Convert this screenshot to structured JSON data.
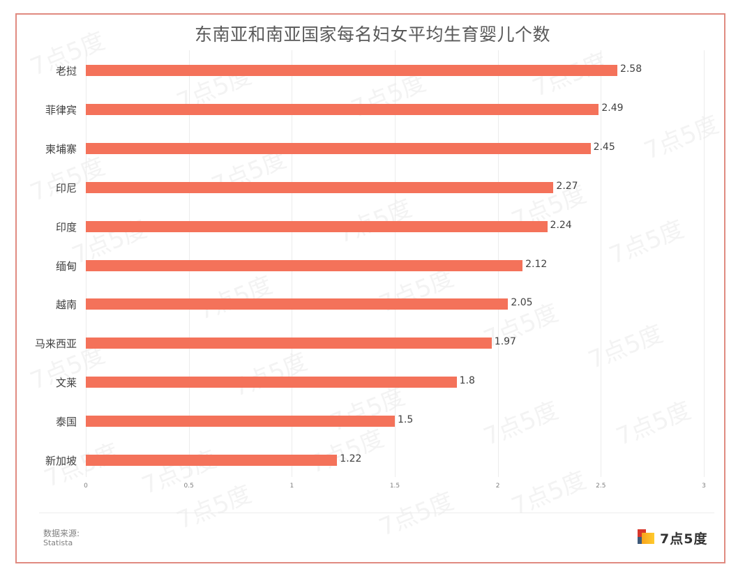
{
  "header": {
    "title": "东南亚和南亚国家每名妇女平均生育婴儿个数"
  },
  "footer": {
    "source_label": "数据来源:",
    "source_value": "Statista",
    "logo_text": "7点5度"
  },
  "watermark": "7点5度",
  "colors": {
    "bar": "#f4725a",
    "frame": "#e08a80",
    "text": "#404040"
  },
  "chart_data": {
    "type": "bar",
    "orientation": "horizontal",
    "title": "东南亚和南亚国家每名妇女平均生育婴儿个数",
    "xlabel": "",
    "ylabel": "",
    "categories": [
      "老挝",
      "菲律宾",
      "柬埔寨",
      "印尼",
      "印度",
      "缅甸",
      "越南",
      "马来西亚",
      "文莱",
      "泰国",
      "新加坡"
    ],
    "values": [
      2.58,
      2.49,
      2.45,
      2.27,
      2.24,
      2.12,
      2.05,
      1.97,
      1.8,
      1.5,
      1.22
    ],
    "value_labels": [
      "2.58",
      "2.49",
      "2.45",
      "2.27",
      "2.24",
      "2.12",
      "2.05",
      "1.97",
      "1.8",
      "1.5",
      "1.22"
    ],
    "xlim": [
      0,
      3
    ],
    "x_ticks": [
      "0",
      "0.5",
      "1",
      "1.5",
      "2",
      "2.5",
      "3"
    ],
    "grid": true,
    "legend": "none",
    "source": "Statista"
  }
}
